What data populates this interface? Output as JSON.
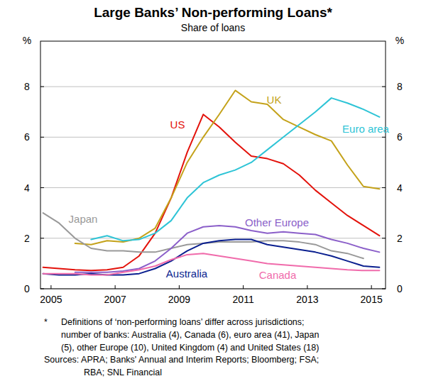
{
  "chart_data": {
    "type": "line",
    "title": "Large Banks’ Non-performing Loans*",
    "subtitle": "Share of loans",
    "y_label": "%",
    "y2_label": "%",
    "x": [
      2004.75,
      2005.25,
      2005.75,
      2006.25,
      2006.75,
      2007.25,
      2007.75,
      2008.25,
      2008.75,
      2009.25,
      2009.75,
      2010.25,
      2010.75,
      2011.25,
      2011.75,
      2012.25,
      2012.75,
      2013.25,
      2013.75,
      2014.25,
      2014.75,
      2015.25
    ],
    "xlim": [
      2004.67,
      2015.44
    ],
    "xticks": [
      2005,
      2007,
      2009,
      2011,
      2013,
      2015
    ],
    "ylim": [
      0,
      9.8
    ],
    "yticks": [
      0,
      2,
      4,
      6,
      8
    ],
    "y2lim": [
      0,
      9.8
    ],
    "y2ticks": [
      0,
      2,
      4,
      6,
      8
    ],
    "grid": true,
    "series": [
      {
        "name": "US",
        "color": "#e3120b",
        "values": [
          0.85,
          0.8,
          0.75,
          0.72,
          0.75,
          0.85,
          1.3,
          2.2,
          3.6,
          5.4,
          6.9,
          6.4,
          5.8,
          5.25,
          5.15,
          4.95,
          4.5,
          3.9,
          3.4,
          2.9,
          2.5,
          2.1
        ]
      },
      {
        "name": "UK",
        "color": "#c4a21a",
        "values": [
          null,
          null,
          1.8,
          1.75,
          1.9,
          1.85,
          2.0,
          2.4,
          3.6,
          5.0,
          6.0,
          6.9,
          7.85,
          7.4,
          7.3,
          6.7,
          6.4,
          6.1,
          5.85,
          4.9,
          4.05,
          3.95
        ]
      },
      {
        "name": "Euro area",
        "color": "#2ec4d6",
        "values": [
          null,
          null,
          null,
          1.95,
          2.1,
          1.9,
          1.95,
          2.2,
          2.7,
          3.6,
          4.2,
          4.5,
          4.7,
          5.0,
          5.5,
          6.0,
          6.5,
          7.0,
          7.55,
          7.35,
          7.1,
          6.8
        ]
      },
      {
        "name": "Japan",
        "color": "#999999",
        "values": [
          3.0,
          2.6,
          2.0,
          1.6,
          1.5,
          1.5,
          1.45,
          1.45,
          1.6,
          1.75,
          1.8,
          1.85,
          1.85,
          1.85,
          1.9,
          1.9,
          1.85,
          1.75,
          1.5,
          1.4,
          1.2,
          null
        ]
      },
      {
        "name": "Other Europe",
        "color": "#8b5fc9",
        "values": [
          null,
          null,
          0.65,
          0.65,
          0.65,
          0.7,
          0.8,
          1.1,
          1.6,
          2.2,
          2.45,
          2.5,
          2.45,
          2.3,
          2.2,
          2.25,
          2.2,
          2.15,
          1.95,
          1.8,
          1.6,
          1.45
        ]
      },
      {
        "name": "Australia",
        "color": "#0a1f8f",
        "values": [
          0.6,
          0.55,
          0.55,
          0.6,
          0.55,
          0.55,
          0.6,
          0.8,
          1.1,
          1.5,
          1.8,
          1.9,
          1.95,
          1.95,
          1.75,
          1.65,
          1.55,
          1.45,
          1.3,
          1.1,
          0.9,
          0.85
        ]
      },
      {
        "name": "Canada",
        "color": "#f06bab",
        "values": [
          0.6,
          0.6,
          0.6,
          0.55,
          0.55,
          0.65,
          0.75,
          0.9,
          1.15,
          1.35,
          1.4,
          1.3,
          1.2,
          1.1,
          1.0,
          0.95,
          0.9,
          0.85,
          0.8,
          0.75,
          0.72,
          0.72
        ]
      }
    ],
    "note_marker": "*",
    "notes": [
      "Definitions of ‘non-performing loans’ differ across jurisdictions;",
      "number of banks: Australia (4), Canada (6), euro area (41), Japan",
      "(5), other Europe (10), United Kingdom (4) and United States (18)"
    ],
    "sources": [
      "Sources: APRA; Banks' Annual and Interim Reports; Bloomberg; FSA;",
      "RBA; SNL Financial"
    ]
  }
}
